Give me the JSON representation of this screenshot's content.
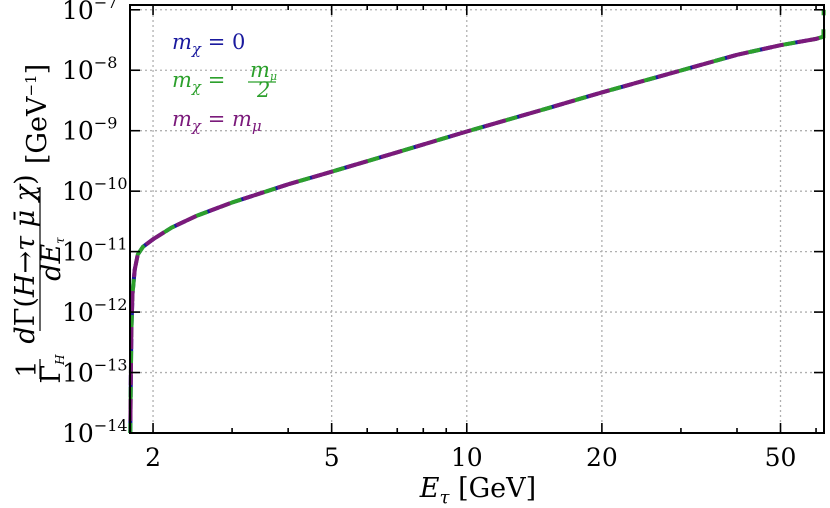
{
  "chart_data": {
    "type": "line",
    "xscale": "log",
    "yscale": "log",
    "xlim": [
      1.777,
      62.5
    ],
    "ylim": [
      1e-14,
      1.2e-07
    ],
    "grid": true,
    "legend_position": "top-left",
    "xlabel": "E_τ [GeV]",
    "ylabel": "(1/Γ_H) dΓ(H→τ μ̄ χ)/dE_τ [GeV⁻¹]",
    "xticks": [
      {
        "value": 2,
        "label": "2"
      },
      {
        "value": 5,
        "label": "5"
      },
      {
        "value": 10,
        "label": "10"
      },
      {
        "value": 20,
        "label": "20"
      },
      {
        "value": 50,
        "label": "50"
      }
    ],
    "yticks": [
      {
        "value": 1e-14,
        "base": "10",
        "exp": "−14"
      },
      {
        "value": 1e-13,
        "base": "10",
        "exp": "−13"
      },
      {
        "value": 1e-12,
        "base": "10",
        "exp": "−12"
      },
      {
        "value": 1e-11,
        "base": "10",
        "exp": "−11"
      },
      {
        "value": 1e-10,
        "base": "10",
        "exp": "−10"
      },
      {
        "value": 1e-09,
        "base": "10",
        "exp": "−9"
      },
      {
        "value": 1e-08,
        "base": "10",
        "exp": "−8"
      },
      {
        "value": 1e-07,
        "base": "10",
        "exp": "−7"
      }
    ],
    "series": [
      {
        "name": "mχ = 0",
        "color": "#1a1a9e",
        "x": [
          1.78,
          1.785,
          1.79,
          1.8,
          1.82,
          1.85,
          1.9,
          2.0,
          2.2,
          2.5,
          3.0,
          4.0,
          5.0,
          7.0,
          10.0,
          15.0,
          20.0,
          30.0,
          40.0,
          50.0,
          60.0,
          62.3
        ],
        "y": [
          1e-14,
          1e-13,
          5e-13,
          2e-12,
          5e-12,
          9e-12,
          1.2e-11,
          1.6e-11,
          2.5e-11,
          3.9e-11,
          6.5e-11,
          1.3e-10,
          2.1e-10,
          4.4e-10,
          9.7e-10,
          2.3e-09,
          4.3e-09,
          9.9e-09,
          1.8e-08,
          2.6e-08,
          3.3e-08,
          3.6e-08
        ]
      },
      {
        "name": "mχ = mμ/2",
        "color": "#2ca02c",
        "x": [
          1.78,
          1.785,
          1.79,
          1.8,
          1.82,
          1.85,
          1.9,
          2.0,
          2.2,
          2.5,
          3.0,
          4.0,
          5.0,
          7.0,
          10.0,
          15.0,
          20.0,
          30.0,
          40.0,
          50.0,
          60.0,
          62.3,
          62.35,
          62.4
        ],
        "y": [
          1e-14,
          1e-13,
          5e-13,
          2e-12,
          5e-12,
          9e-12,
          1.2e-11,
          1.6e-11,
          2.5e-11,
          3.9e-11,
          6.5e-11,
          1.3e-10,
          2.1e-10,
          4.4e-10,
          9.7e-10,
          2.3e-09,
          4.3e-09,
          9.9e-09,
          1.8e-08,
          2.6e-08,
          3.3e-08,
          3.6e-08,
          6e-08,
          1e-07
        ]
      },
      {
        "name": "mχ = mμ",
        "color": "#7b1a7b",
        "x": [
          1.78,
          1.785,
          1.79,
          1.8,
          1.82,
          1.85,
          1.9,
          2.0,
          2.2,
          2.5,
          3.0,
          4.0,
          5.0,
          7.0,
          10.0,
          15.0,
          20.0,
          30.0,
          40.0,
          50.0,
          60.0,
          62.3
        ],
        "y": [
          1e-14,
          1e-13,
          5e-13,
          2e-12,
          5e-12,
          9e-12,
          1.2e-11,
          1.6e-11,
          2.5e-11,
          3.9e-11,
          6.5e-11,
          1.3e-10,
          2.1e-10,
          4.4e-10,
          9.7e-10,
          2.3e-09,
          4.3e-09,
          9.9e-09,
          1.8e-08,
          2.6e-08,
          3.3e-08,
          3.6e-08
        ]
      }
    ]
  }
}
